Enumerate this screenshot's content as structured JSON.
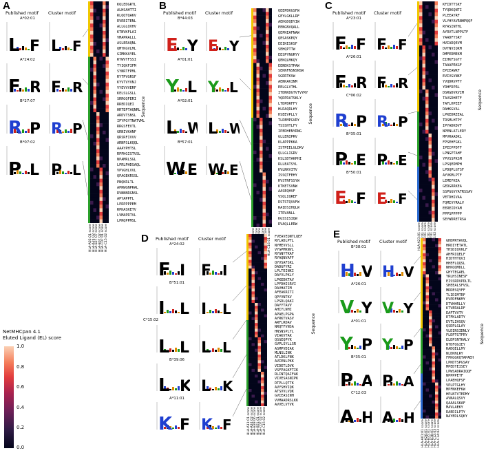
{
  "colorbar": {
    "title_line1": "NetMHCpan 4.1",
    "title_line2": "Eluted Ligand (EL) score",
    "ticks": [
      "1.0",
      "0.8",
      "0.6",
      "0.4",
      "0.2",
      "0.0"
    ]
  },
  "common": {
    "published_motif": "Published motif",
    "cluster_motif": "Cluster motif",
    "sequence_label": "Sequence"
  },
  "panels": [
    {
      "label": "A",
      "alleles": [
        "A*02:01",
        "A*24:02",
        "B*27:07",
        "B*07:02"
      ],
      "logo_letters": [
        "L",
        "F",
        "R",
        "P"
      ],
      "logo_colors": [
        "#000000",
        "#000000",
        "#1f3fd0",
        "#000000"
      ],
      "sequences": [
        "KQLEDGRTL",
        "ALHSAHTTI",
        "RLQQTQAKV",
        "RVREITENL",
        "ALLGLQVHV",
        "KTNVKFLAI",
        "VMAPRALLL",
        "ASLERAQNL",
        "QMYKGVLML",
        "GIMKKAYEL",
        "RYWVTFSSI",
        "TYIQKFIFM",
        "SYNRTFPML",
        "RYTPVGRSF",
        "KYVTVYVNJ",
        "VYEVVVERF",
        "KELSLGSLL",
        "SRRGQFERI",
        "RREDIQEI",
        "HRTEPTAQNRL",
        "ARDVTSNSL",
        "IPYPGYTNATVML",
        "RRGSFEVTL",
        "GRNIVKANF",
        "QRSRFIVVV",
        "ARNPSLKQQL",
        "AAAYPHTSL",
        "RPPHGISTVSL",
        "NPAMRLSGL",
        "LPRLPHDSAQL",
        "VPVGHLVVL",
        "QPAGEKRSSL",
        "PNQKRLTL",
        "APRWGNPRAL",
        "RVNNNRGNSL",
        "APYAPPFL",
        "LPRPPPPEM",
        "RPKASKETV",
        "LVMAPRTVL",
        "LPRQPPMSL"
      ],
      "xlabels": [
        "HLA-A02:01 score",
        "HLA-A24:02 score",
        "HLA-B27:07 score",
        "HLA-B07:02 score",
        "HLA-C07:01 score",
        "HLA-C15:02 score"
      ]
    },
    {
      "label": "B",
      "alleles": [
        "B*44:03",
        "A*01:01",
        "A*02:01",
        "B*57:01"
      ],
      "logo_letters": [
        "E",
        "Y",
        "L",
        "W"
      ],
      "logo_colors": [
        "#d0201a",
        "#1a9a1a",
        "#000000",
        "#000000"
      ],
      "sequences": [
        "QEEPDKGSFW",
        "GEYLGKLLRF",
        "AEHGDQDYIW",
        "EENGNVQALL",
        "QEPKEAFNAW",
        "QESASKEQY",
        "EEIKESKSF",
        "SEHQPTTW",
        "EESPYNGRYY",
        "QEKQLMKQY",
        "EENDKSTPAW",
        "SEKNFNSNSNSW",
        "SGDRTKVW",
        "AENKAKINM",
        "EELGLVTHL",
        "ITDNKDGTVTVYRY",
        "YQDPDATSKLY",
        "LTDPDRFFY",
        "HLDAQRLHY",
        "HSEEVPLLY",
        "TLDEMPGVRY",
        "TSSSHTLFY",
        "IPEDHENYRNG",
        "GLLENIPRV",
        "KLAPPPKKA",
        "ISTPEELGLDKV",
        "QLLGLIGRV",
        "KSLSDTAKPHI",
        "RLLEATSYL",
        "KVLNKVITV",
        "ISSQTFEHY",
        "RVSTNFSSYW",
        "KTKETSVNW",
        "AASEQHVF",
        "VSQLIQREF",
        "RSTSTQVVFW",
        "RAIDSIHQLW",
        "ITRVANLL",
        "KGSSISIQW",
        "RVAQLLERW"
      ],
      "xlabels": [
        "HLA-A01:01 score",
        "HLA-A02:01 score",
        "HLA-B44:03 score",
        "HLA-B57:01 score",
        "HLA-C06:02 score",
        "HLA-C16:01 score"
      ]
    },
    {
      "label": "C",
      "alleles": [
        "A*23:01",
        "A*26:01",
        "C*06:02",
        "B*35:01",
        "B*50:01"
      ],
      "logo_letters": [
        "F",
        "F",
        "R",
        "P",
        "E"
      ],
      "logo_colors": [
        "#000000",
        "#000000",
        "#1f3fd0",
        "#000000",
        "#d0201a"
      ],
      "sequences": [
        "KFIDTTSKF",
        "TYQDKQNTI",
        "PLEEAYRF",
        "VLYHYAVRNHPQQF",
        "RYASINTHL",
        "AYRVTLNPPGTF",
        "YAADFYSRY",
        "HVIADQEVM",
        "DVTNVIQKM",
        "DMFEDMEKM",
        "EIHKFSGTY",
        "TAAAPRKGF",
        "EPIEAWKF",
        "EVIVGVNKF",
        "YVQDRVPFY",
        "YRHFDPRL",
        "DSRGDVKVIM",
        "TAVGDHETF",
        "TAFLHPEEF",
        "DAHKGVAL",
        "LPKEDREEAL",
        "TRSMLHTPY",
        "IPYADKDVF",
        "NPENLATLERY",
        "MPVRAADKL",
        "FPSEHFGKL",
        "IPEIPPDFF",
        "LPNGPTAHF",
        "YPVSSPKSM",
        "LPSQEDMPH",
        "LPDQPLGTSF",
        "AYVKMLPTF",
        "LEMEFKEA",
        "GEDGRRKEA",
        "SSPGGVYATRSSAV",
        "VETDHIVAA",
        "FQMIVYRALV",
        "EEREIDYAM",
        "PPPSPPPPP",
        "SEYWDRETRSA"
      ],
      "xlabels": [
        "HLA-A23:01 score",
        "HLA-A26:01 score",
        "HLA-B35:01 score",
        "HLA-B50:01 score",
        "HLA-C04:01 score",
        "HLA-C06:02 score"
      ]
    },
    {
      "label": "D",
      "alleles": [
        "A*24:02",
        "B*51:01",
        "C*15:02",
        "B*39:06",
        "A*11:01"
      ],
      "logo_letters": [
        "F",
        "I",
        "L",
        "L",
        "K"
      ],
      "logo_colors": [
        "#000000",
        "#000000",
        "#000000",
        "#000000",
        "#1f3fd0"
      ],
      "sequences": [
        "FVEAVEQNTLQEF",
        "RYLADLPTL",
        "NYMEVVSLL",
        "VYGPMKNVL",
        "RYGNYTKAF",
        "RYAQNVAFF",
        "QYVSAFSKL",
        "DADGFYRI",
        "LPLTEINKI",
        "DAYVLPKLY",
        "LPKEDKTAV",
        "LPFDHISRVI",
        "DAVHATIM",
        "AFEAKRITI",
        "QPYVNTKV",
        "LPSDLQAKI",
        "DAYYTAVV",
        "AHIYLNHI",
        "APAELPGPA",
        "AYRKTVASV",
        "ARFLRDAV",
        "NRQTFVNSA",
        "HNSNSPLYL",
        "VIAKVTAK",
        "QSGEQPYK",
        "GVPLSYLLSR",
        "ASMPVDIAK",
        "MLNSLINK",
        "ATLDKLFNK",
        "AVIENLPKK",
        "VIDETLDVK",
        "VSFPAGKFTIK",
        "RLINTQAIFAK",
        "VIVESASNIPK",
        "DTPLLQTTK",
        "AVYSHVIQK",
        "ATSVVLVQK",
        "GVIEASINH",
        "VVMAADRSLKK",
        "AVVELVTVK"
      ],
      "xlabels": [
        "HLA-A11:01 score",
        "HLA-A24:02 score",
        "HLA-B39:06 score",
        "HLA-B51:01 score",
        "HLA-C07:02 score",
        "HLA-C15:02 score"
      ]
    },
    {
      "label": "E",
      "alleles": [
        "B*38:01",
        "A*26:01",
        "A*01:01",
        "B*35:01",
        "C*12:03"
      ],
      "logo_letters": [
        "H",
        "V",
        "Y",
        "P",
        "A"
      ],
      "logo_colors": [
        "#1f3fd0",
        "#1a9a1a",
        "#1a9a1a",
        "#000000",
        "#000000"
      ],
      "sequences": [
        "GHDPRTAVQL",
        "HRDIYETATL",
        "THSDIQVKLF",
        "AHFRIQELF",
        "HIDTHTQVI",
        "HHEFLQQSL",
        "NHKQQMDLL",
        "GHYTEGAEL",
        "YRLHSINESF",
        "EISSRDVPDLTL",
        "SHEEALSFVSL",
        "MDDESQYFF",
        "TLIDIMTRF",
        "EVPDFNKMY",
        "DTVHHRLLY",
        "KTVERALDF",
        "EAFTVVTY",
        "ETFKLADTY",
        "EVTLIHSQV",
        "QSDPLGLAY",
        "VLDINSIDNLY",
        "FLDPTGTFRY",
        "ELDPSNTKALY",
        "NTDFQGIEY",
        "RADQELLMY",
        "NLDKNLRY",
        "FPKGGKQTAPAEH",
        "LPKDTSPGSAY",
        "MPEDTEISEY",
        "LPWSADRAIQQF",
        "NPPPPETF",
        "LPAEHQFSF",
        "VPLPTGLHY",
        "MPFNKEFKW",
        "HPLNTVTEDMY",
        "AVNALQSVY",
        "QAAALSKAF",
        "MAVLAEKY",
        "RAEDILPTY",
        "NAYEDLSQKY"
      ],
      "xlabels": [
        "HLA-A01:01 score",
        "HLA-A26:01 score",
        "HLA-B35:01 score",
        "HLA-B38:01 score",
        "HLA-C12:03 score",
        "HLA-C14:02 score"
      ]
    }
  ]
}
